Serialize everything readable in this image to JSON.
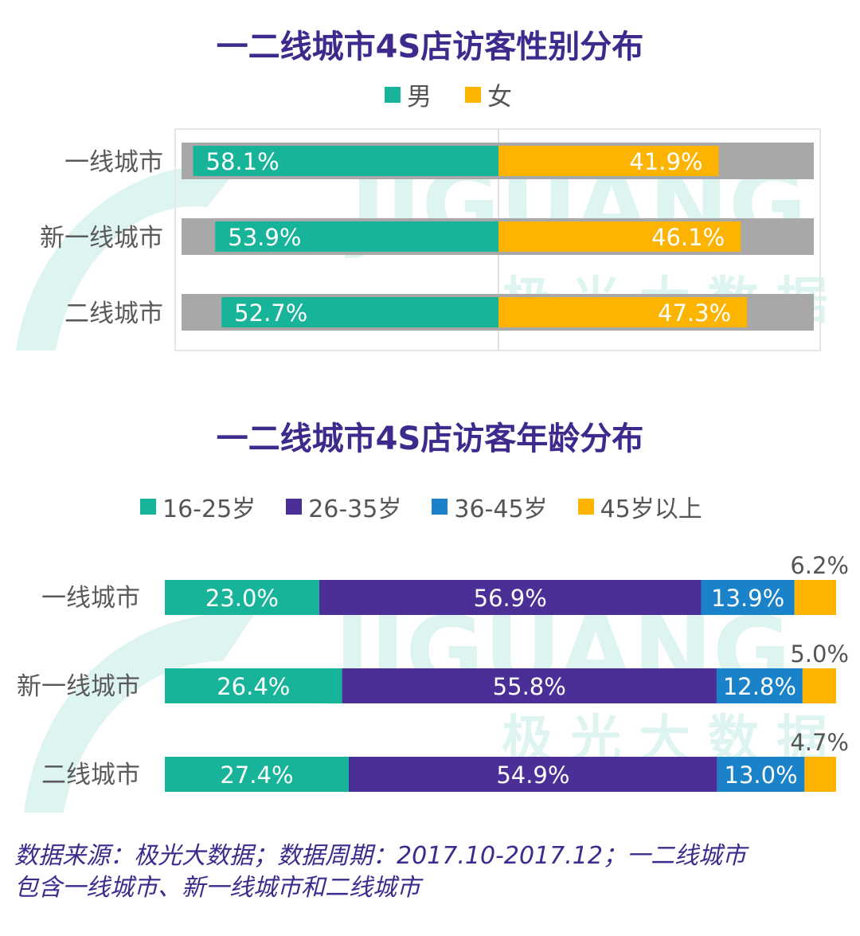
{
  "chart_data": [
    {
      "type": "bar",
      "orientation": "horizontal-diverging",
      "title": "一二线城市4S店访客性别分布",
      "categories": [
        "一线城市",
        "新一线城市",
        "二线城市"
      ],
      "series": [
        {
          "name": "男",
          "color": "#18b49a",
          "values": [
            58.1,
            53.9,
            52.7
          ],
          "labels": [
            "58.1%",
            "53.9%",
            "52.7%"
          ]
        },
        {
          "name": "女",
          "color": "#fdb400",
          "values": [
            41.9,
            46.1,
            47.3
          ],
          "labels": [
            "41.9%",
            "46.1%",
            "47.3%"
          ]
        }
      ],
      "xlim": [
        -60,
        60
      ]
    },
    {
      "type": "bar",
      "orientation": "horizontal-stacked",
      "title": "一二线城市4S店访客年龄分布",
      "categories": [
        "一线城市",
        "新一线城市",
        "二线城市"
      ],
      "series": [
        {
          "name": "16-25岁",
          "color": "#18b49a",
          "values": [
            23.0,
            26.4,
            27.4
          ],
          "labels": [
            "23.0%",
            "26.4%",
            "27.4%"
          ]
        },
        {
          "name": "26-35岁",
          "color": "#4b2f96",
          "values": [
            56.9,
            55.8,
            54.9
          ],
          "labels": [
            "56.9%",
            "55.8%",
            "54.9%"
          ]
        },
        {
          "name": "36-45岁",
          "color": "#1a82c9",
          "values": [
            13.9,
            12.8,
            13.0
          ],
          "labels": [
            "13.9%",
            "12.8%",
            "13.0%"
          ]
        },
        {
          "name": "45岁以上",
          "color": "#fdb400",
          "values": [
            6.2,
            5.0,
            4.7
          ],
          "labels": [
            "6.2%",
            "5.0%",
            "4.7%"
          ]
        }
      ],
      "xlim": [
        0,
        100
      ]
    }
  ],
  "watermark": {
    "brand": "JIGUANG",
    "brand_cn": "极 光 大 数 据"
  },
  "source_note": {
    "line1": "数据来源：极光大数据；数据周期：2017.10-2017.12；一二线城市",
    "line2": "包含一线城市、新一线城市和二线城市"
  },
  "colors": {
    "male": "#18b49a",
    "female": "#fdb400",
    "track": "#a8a8a8",
    "title": "#3d2a8c"
  }
}
